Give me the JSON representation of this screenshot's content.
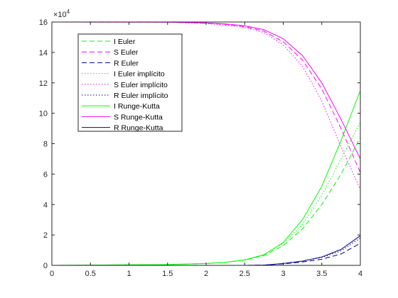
{
  "chart_data": {
    "type": "line",
    "title": "",
    "xlabel": "",
    "ylabel": "",
    "xlim": [
      0,
      4
    ],
    "ylim": [
      0,
      160000
    ],
    "y_exponent_label": "×10",
    "y_exponent_power": "4",
    "y_tick_scale": 10000,
    "x_ticks": [
      0,
      0.5,
      1,
      1.5,
      2,
      2.5,
      3,
      3.5,
      4
    ],
    "y_ticks": [
      0,
      2,
      4,
      6,
      8,
      10,
      12,
      14,
      16
    ],
    "grid": false,
    "legend_position": "top-left",
    "series": [
      {
        "name": "I Euler",
        "color": "#00ff00",
        "dash": "dashed",
        "x": [
          0,
          1.5,
          2,
          2.25,
          2.5,
          2.75,
          3,
          3.25,
          3.5,
          3.75,
          4
        ],
        "y": [
          0,
          500,
          1200,
          2000,
          3500,
          6500,
          13000,
          24000,
          40000,
          60000,
          84000
        ]
      },
      {
        "name": "S Euler",
        "color": "#ff00ff",
        "dash": "dashed",
        "x": [
          0,
          1.5,
          2,
          2.25,
          2.5,
          2.75,
          3,
          3.25,
          3.5,
          3.75,
          4
        ],
        "y": [
          160000,
          159900,
          159200,
          158500,
          157000,
          154000,
          147000,
          135000,
          116000,
          90000,
          61000
        ]
      },
      {
        "name": "R Euler",
        "color": "#00008b",
        "dash": "dashed",
        "x": [
          0,
          2.5,
          2.75,
          3,
          3.25,
          3.5,
          3.75,
          4
        ],
        "y": [
          0,
          0,
          200,
          1000,
          2200,
          4000,
          7500,
          14500
        ]
      },
      {
        "name": "I Euler implícito",
        "color": "#00ff00",
        "dash": "dotted",
        "x": [
          0,
          1.5,
          2,
          2.25,
          2.5,
          2.75,
          3,
          3.25,
          3.5,
          3.75,
          4
        ],
        "y": [
          0,
          500,
          1200,
          2000,
          3800,
          7000,
          14500,
          27000,
          46000,
          70000,
          94000
        ]
      },
      {
        "name": "S Euler implícito",
        "color": "#ff00ff",
        "dash": "dotted",
        "x": [
          0,
          1.5,
          2,
          2.25,
          2.5,
          2.75,
          3,
          3.25,
          3.5,
          3.75,
          4
        ],
        "y": [
          160000,
          159900,
          159000,
          158000,
          156500,
          153000,
          145000,
          131000,
          108000,
          78000,
          50000
        ]
      },
      {
        "name": "R Euler implícito",
        "color": "#00008b",
        "dash": "dotted",
        "x": [
          0,
          2.5,
          2.75,
          3,
          3.25,
          3.5,
          3.75,
          4
        ],
        "y": [
          0,
          0,
          200,
          1200,
          2800,
          5200,
          9500,
          18000
        ]
      },
      {
        "name": "I Runge-Kutta",
        "color": "#00ff00",
        "dash": "solid",
        "x": [
          0,
          1.5,
          2,
          2.25,
          2.5,
          2.75,
          3,
          3.25,
          3.5,
          3.75,
          4
        ],
        "y": [
          0,
          500,
          1200,
          2000,
          3500,
          7000,
          15000,
          30000,
          52000,
          82000,
          115000
        ]
      },
      {
        "name": "S Runge-Kutta",
        "color": "#ff00ff",
        "dash": "solid",
        "x": [
          0,
          1.5,
          2,
          2.25,
          2.5,
          2.75,
          3,
          3.25,
          3.5,
          3.75,
          4
        ],
        "y": [
          160000,
          159900,
          159400,
          158700,
          157500,
          155000,
          149000,
          138000,
          120000,
          96000,
          70000
        ]
      },
      {
        "name": "R Runge-Kutta",
        "color": "#00008b",
        "dash": "solid",
        "x": [
          0,
          2.5,
          2.75,
          3,
          3.25,
          3.5,
          3.75,
          4
        ],
        "y": [
          0,
          0,
          200,
          1200,
          2800,
          5500,
          10500,
          19500
        ]
      }
    ]
  }
}
